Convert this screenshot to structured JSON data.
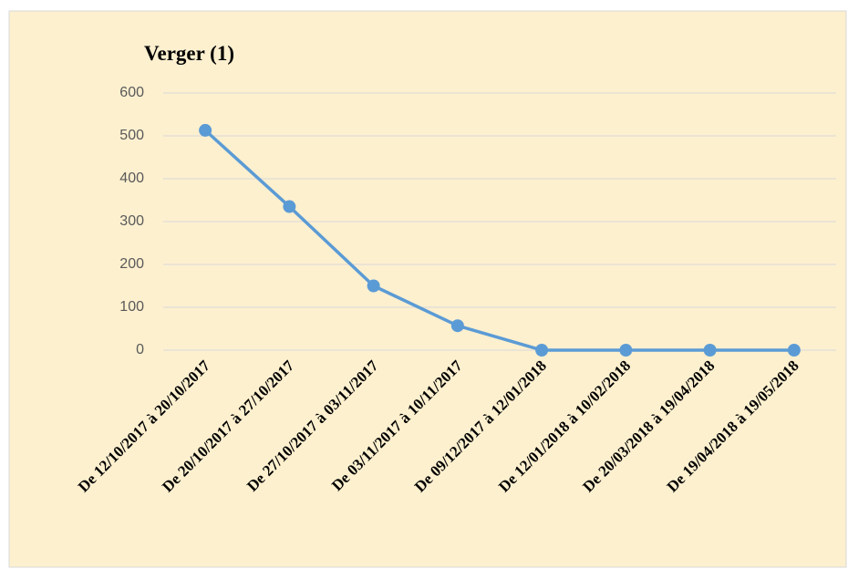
{
  "chart_data": {
    "type": "line",
    "title": "Verger (1)",
    "categories": [
      "De 12/10/2017 à 20/10/2017",
      "De 20/10/2017 à 27/10/2017",
      "De 27/10/2017 à 03/11/2017",
      "De 03/11/2017 à 10/11/2017",
      "De 09/12/2017 à 12/01/2018",
      "De 12/01/2018 à 10/02/2018",
      "De 20/03/2018 à 19/04/2018",
      "De 19/04/2018 à 19/05/2018"
    ],
    "series": [
      {
        "name": "Verger (1)",
        "color": "#5b9bd5",
        "values": [
          513,
          335,
          150,
          57,
          0,
          0,
          0,
          0
        ]
      }
    ],
    "ylim": [
      0,
      600
    ],
    "yticks": [
      0,
      100,
      200,
      300,
      400,
      500,
      600
    ],
    "grid": true
  }
}
